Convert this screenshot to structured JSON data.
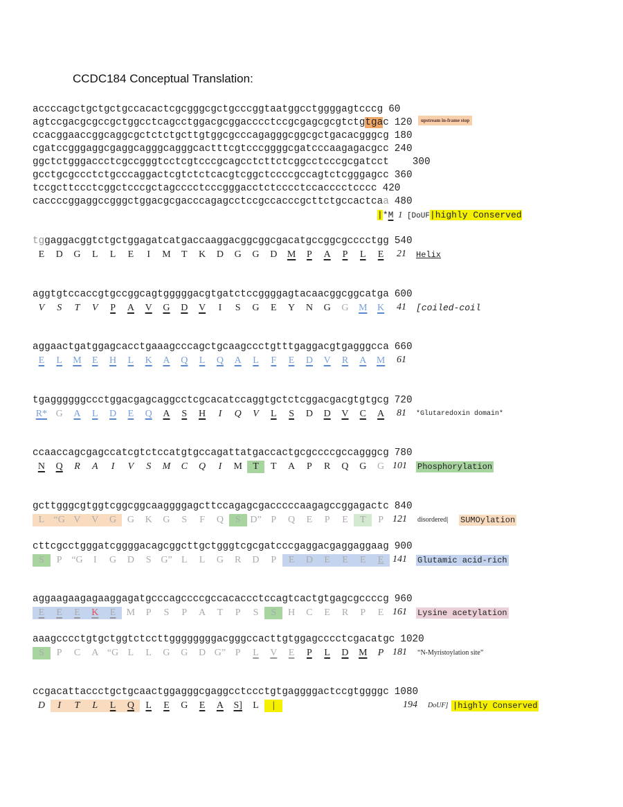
{
  "title": "CCDC184 Conceptual Translation:",
  "upstream": {
    "lines": [
      {
        "seq": "accccagctgctgctgccacactcgcgggcgctgcccggtaatggcctggggagtcccg",
        "num": "60"
      },
      {
        "seq": "agtccgacgcgccgctggcctcagcctggacgcggacccctccgcgagcgcgtctgtgac",
        "num": "120"
      },
      {
        "seq": "ccacggaaccggcaggcgctctctgcttgtggcgcccagagggcggcgctgacacgggcg",
        "num": "180"
      },
      {
        "seq": "cgatccgggaggcgaggcagggcagggcactttcgtcccggggcgatcccaagagacgcc",
        "num": "240"
      },
      {
        "seq": "ggctctgggaccctcgccgggtcctcgtcccgcagcctcttctcggcctcccgcgatcct",
        "num": "300"
      },
      {
        "seq": "gcctgcgccctctgcccaggactcgtctctcacgtcggctccccgccagtctcgggagcc",
        "num": "360"
      },
      {
        "seq": "tccgcttccctcggctcccgctagcccctcccgggacctctcccctccacccctcccc",
        "num": "420"
      },
      {
        "seq": "caccccggaggccgggctggacgcgacccagagcctccgccacccgcttctgccactcaa",
        "num": "480"
      }
    ],
    "stop_note": "upstream in-frame stop",
    "start_mark": {
      "bar": "|",
      "star": "*",
      "met": "M",
      "num": "1",
      "bracket": "[DoUF",
      "conserved": "|highly Conserved"
    }
  },
  "rows": [
    {
      "seq": "tggaggacggtctgctggagatcatgaccaaggacggcggcgacatgccggcgcccctgg",
      "num": "540",
      "aa": [
        "E",
        "D",
        "G",
        "L",
        "L",
        "E",
        "I",
        "M",
        "T",
        "K",
        "D",
        "G",
        "G",
        "D",
        "M",
        "P",
        "A",
        "P",
        "L",
        "E"
      ],
      "aa_num": "21",
      "label": "Helix"
    },
    {
      "seq": "aggtgtccaccgtgccggcagtgggggacgtgatctccggggagtacaacggcggcatga",
      "num": "600",
      "aa": [
        "V",
        "S",
        "T",
        "V",
        "P",
        "A",
        "V",
        "G",
        "D",
        "V",
        "I",
        "S",
        "G",
        "E",
        "Y",
        "N",
        "G",
        "G",
        "M",
        "K"
      ],
      "aa_num": "41",
      "label": "[coiled-coil"
    },
    {
      "seq": "aggaactgatggagcacctgaaagcccagctgcaagccctgtttgaggacgtgagggcca",
      "num": "660",
      "aa": [
        "E",
        "L",
        "M",
        "E",
        "H",
        "L",
        "K",
        "A",
        "Q",
        "L",
        "Q",
        "A",
        "L",
        "F",
        "E",
        "D",
        "V",
        "R",
        "A",
        "M"
      ],
      "aa_num": "61",
      "label": ""
    },
    {
      "seq": "tgaggggggccctggacgagcaggcctcgcacatccaggtgctctcggacgacgtgtgcg",
      "num": "720",
      "aa": [
        "R*",
        "G",
        "A",
        "L",
        "D",
        "E",
        "Q",
        "A",
        "S",
        "H",
        "I",
        "Q",
        "V",
        "L",
        "S",
        "D",
        "D",
        "V",
        "C",
        "A"
      ],
      "aa_num": "81",
      "label": "*Glutaredoxin domain*"
    },
    {
      "seq": "ccaaccagcgagccatcgtctccatgtgccagattatgaccactgcgccccgccagggcg",
      "num": "780",
      "aa": [
        "N",
        "Q",
        "R",
        "A",
        "I",
        "V",
        "S",
        "M",
        "C",
        "Q",
        "I",
        "M",
        "T",
        "T",
        "A",
        "P",
        "R",
        "Q",
        "G",
        "G"
      ],
      "aa_num": "101",
      "label": "Phosphorylation"
    },
    {
      "seq": "gcttgggcgtggtcggcggcaaggggagcttccagagcgacccccaagagccggagactc",
      "num": "840",
      "aa": [
        "L",
        "“G",
        "V",
        "V",
        "G",
        "G",
        "K",
        "G",
        "S",
        "F",
        "Q",
        "S",
        "D”",
        "P",
        "Q",
        "E",
        "P",
        "E",
        "T",
        "P"
      ],
      "aa_num": "121",
      "label_pre": "disordered|",
      "label": "SUMOylation"
    },
    {
      "seq": "cttcgcctgggatcggggacagcggcttgctgggtcgcgatcccgaggacgaggaggaag",
      "num": "900",
      "aa": [
        "S",
        "P",
        "“G",
        "I",
        "G",
        "D",
        "S",
        "G”",
        "L",
        "L",
        "G",
        "R",
        "D",
        "P",
        "E",
        "D",
        "E",
        "E",
        "E",
        "E"
      ],
      "aa_num": "141",
      "label": "Glutamic acid-rich"
    },
    {
      "seq": "aggaagaagagaaggagatgcccagccccgccacaccctccagtcactgtgagcgccccg",
      "num": "960",
      "aa": [
        "E",
        "E",
        "E",
        "K",
        "E",
        "M",
        "P",
        "S",
        "P",
        "A",
        "T",
        "P",
        "S",
        "S",
        "H",
        "C",
        "E",
        "R",
        "P",
        "E"
      ],
      "aa_num": "161",
      "label": "Lysine acetylation"
    },
    {
      "seq": "aaagcccctgtgctggtctccttggggggggacgggccacttgtggagcccctcgacatgc",
      "num": "1020",
      "aa": [
        "S",
        "P",
        "C",
        "A",
        "“G",
        "L",
        "L",
        "G",
        "G",
        "D",
        "G”",
        "P",
        "L",
        "V",
        "E",
        "P",
        "L",
        "D",
        "M",
        "P"
      ],
      "aa_num": "181",
      "label": "“N-Myristoylation site”"
    },
    {
      "seq": "ccgacattaccctgctgcaactggagggcgaggcctccctgtgaggggactccgtggggc",
      "num": "1080",
      "aa": [
        "D",
        "I",
        "T",
        "L",
        "L",
        "Q",
        "L",
        "E",
        "G",
        "E",
        "A",
        "S]",
        "L",
        "|"
      ],
      "aa_num": "194",
      "label_pre": "DoUF]",
      "label": "|highly Conserved"
    }
  ],
  "colors": {
    "stop": "#f0a868",
    "conserved": "#f4f000",
    "phospho": "#a8d4a0",
    "sumo": "#f9dcc0",
    "glu": "#c4d4ee",
    "lys": "#ecd0d8",
    "coil": "#5a88d0"
  }
}
